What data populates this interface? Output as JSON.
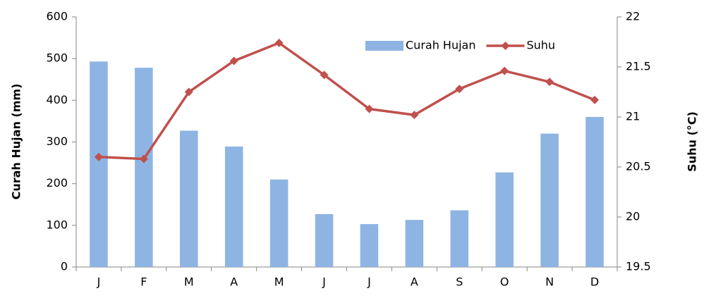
{
  "chart_data": {
    "type": "bar-line",
    "categories": [
      "J",
      "F",
      "M",
      "A",
      "M",
      "J",
      "J",
      "A",
      "S",
      "O",
      "N",
      "D"
    ],
    "y_label": "Curah Hujan (mm)",
    "y2_label": "Suhu (°C)",
    "ylim": [
      0,
      600
    ],
    "yticks": [
      0,
      100,
      200,
      300,
      400,
      500,
      600
    ],
    "y2lim": [
      19.5,
      22
    ],
    "y2ticks": [
      19.5,
      20,
      20.5,
      21,
      21.5,
      22
    ],
    "legend": "upper right",
    "series": [
      {
        "name": "Curah Hujan",
        "type": "bar",
        "color": "#8eb4e3",
        "values": [
          493,
          478,
          327,
          289,
          210,
          127,
          103,
          113,
          136,
          227,
          320,
          360
        ]
      },
      {
        "name": "Suhu",
        "type": "line",
        "axis": "y2",
        "color": "#c0504d",
        "values": [
          20.6,
          20.58,
          21.25,
          21.56,
          21.74,
          21.42,
          21.08,
          21.02,
          21.28,
          21.46,
          21.35,
          21.17
        ]
      }
    ]
  }
}
